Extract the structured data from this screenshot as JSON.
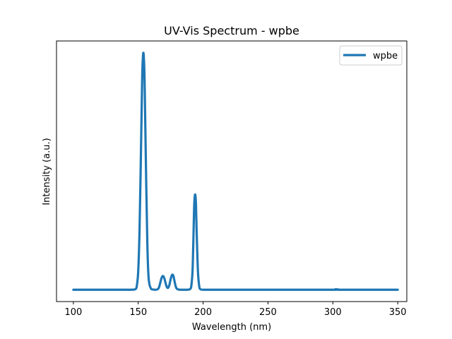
{
  "chart_data": {
    "type": "line",
    "title": "UV-Vis Spectrum - wpbe",
    "xlabel": "Wavelength (nm)",
    "ylabel": "Intensity (a.u.)",
    "xlim": [
      87,
      357
    ],
    "ylim": [
      -0.05,
      1.05
    ],
    "xticks": [
      100,
      150,
      200,
      250,
      300,
      350
    ],
    "yticks": [],
    "grid": false,
    "legend": {
      "placement": "top-right",
      "entries": [
        "wpbe"
      ]
    },
    "color": "#1f77b4",
    "series": [
      {
        "name": "wpbe",
        "x": [
          100,
          140,
          145,
          148,
          149,
          150,
          151,
          152,
          153,
          153.5,
          154,
          154.5,
          155,
          156,
          157,
          158,
          160,
          163,
          165,
          166,
          167,
          168,
          169,
          170,
          171,
          172,
          173,
          174,
          175,
          176,
          177,
          178,
          179,
          180,
          182,
          185,
          188,
          190,
          191,
          192,
          193,
          193.5,
          194,
          194.5,
          195,
          196,
          197,
          198,
          200,
          210,
          250,
          300,
          302,
          304,
          310,
          350
        ],
        "y": [
          0,
          0,
          0,
          0.003,
          0.02,
          0.08,
          0.25,
          0.55,
          0.88,
          0.97,
          1.0,
          0.96,
          0.85,
          0.5,
          0.2,
          0.05,
          0.003,
          0,
          0.002,
          0.01,
          0.03,
          0.05,
          0.058,
          0.05,
          0.03,
          0.012,
          0.008,
          0.02,
          0.045,
          0.062,
          0.06,
          0.035,
          0.012,
          0.003,
          0,
          0,
          0,
          0.003,
          0.02,
          0.1,
          0.33,
          0.39,
          0.4,
          0.36,
          0.25,
          0.08,
          0.015,
          0.002,
          0,
          0,
          0,
          0,
          0.002,
          0,
          0,
          0
        ]
      }
    ]
  }
}
